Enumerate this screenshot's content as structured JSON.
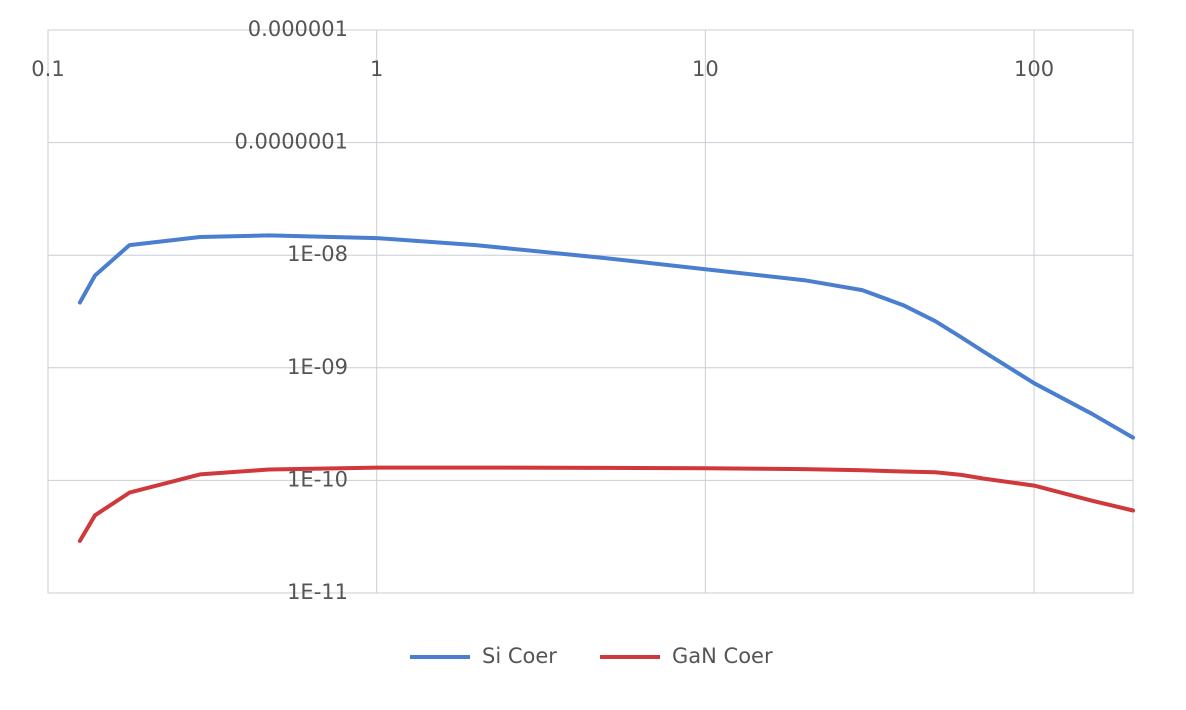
{
  "chart_data": {
    "type": "line",
    "x": [
      0.125,
      0.139,
      0.177,
      0.29,
      0.47,
      1,
      2,
      5,
      10,
      20,
      30,
      40,
      50,
      60,
      70,
      100,
      150,
      200
    ],
    "series": [
      {
        "name": "Si Coer",
        "color": "#4a7fcf",
        "values": [
          3.8e-09,
          6.6e-09,
          1.23e-08,
          1.45e-08,
          1.5e-08,
          1.42e-08,
          1.23e-08,
          9.4e-09,
          7.5e-09,
          6e-09,
          4.9e-09,
          3.6e-09,
          2.6e-09,
          1.87e-09,
          1.4e-09,
          7.3e-10,
          3.9e-10,
          2.4e-10
        ]
      },
      {
        "name": "GaN Coer",
        "color": "#d0393b",
        "values": [
          2.9e-11,
          4.9e-11,
          7.8e-11,
          1.13e-10,
          1.25e-10,
          1.3e-10,
          1.3e-10,
          1.29e-10,
          1.28e-10,
          1.26e-10,
          1.23e-10,
          1.2e-10,
          1.18e-10,
          1.12e-10,
          1.04e-10,
          9e-11,
          6.6e-11,
          5.4e-11
        ]
      }
    ],
    "xlim": [
      0.1,
      200
    ],
    "xticks": [
      0.1,
      1,
      10,
      100
    ],
    "xlog": true,
    "ylim": [
      1e-11,
      1e-06
    ],
    "yticks": [
      {
        "value": 1e-11,
        "label": "1E-11"
      },
      {
        "value": 1e-10,
        "label": "1E-10"
      },
      {
        "value": 1e-09,
        "label": "1E-09"
      },
      {
        "value": 1e-08,
        "label": "1E-08"
      },
      {
        "value": 1e-07,
        "label": "0.0000001"
      },
      {
        "value": 1e-06,
        "label": "0.000001"
      }
    ],
    "ylog": true,
    "grid": true,
    "legend": "bottom"
  }
}
